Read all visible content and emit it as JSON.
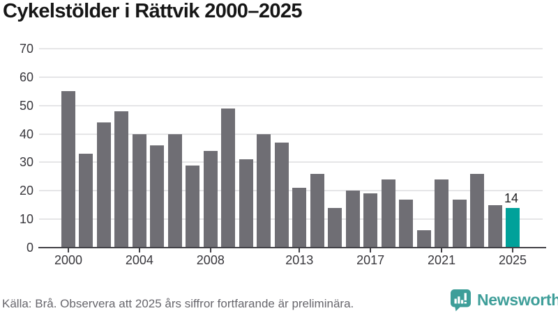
{
  "title": "Cykelstölder i Rättvik 2000–2025",
  "footer": {
    "source_note": "Källa: Brå. Observera att 2025 års siffror fortfarande är preliminära."
  },
  "branding": {
    "name": "Newsworthy",
    "logo_icon": "speech-bubble-bar-chart-icon",
    "color": "#3e9e99"
  },
  "chart_data": {
    "type": "bar",
    "title": "Cykelstölder i Rättvik 2000–2025",
    "xlabel": "",
    "ylabel": "",
    "x": [
      2000,
      2001,
      2002,
      2003,
      2004,
      2005,
      2006,
      2007,
      2008,
      2009,
      2010,
      2011,
      2012,
      2013,
      2014,
      2015,
      2016,
      2017,
      2018,
      2019,
      2020,
      2021,
      2022,
      2023,
      2024,
      2025
    ],
    "values": [
      55,
      33,
      44,
      48,
      40,
      36,
      40,
      29,
      34,
      49,
      31,
      40,
      37,
      21,
      26,
      14,
      20,
      19,
      24,
      17,
      6,
      24,
      17,
      26,
      15,
      14
    ],
    "ylim": [
      0,
      70
    ],
    "y_ticks": [
      0,
      10,
      20,
      30,
      40,
      50,
      60,
      70
    ],
    "x_ticks": [
      2000,
      2004,
      2008,
      2013,
      2017,
      2021,
      2025
    ],
    "grid": "horizontal",
    "legend": "none",
    "bar_color": "#6f6e74",
    "highlight": {
      "year": 2025,
      "color": "#00a19a",
      "label": "14"
    }
  }
}
